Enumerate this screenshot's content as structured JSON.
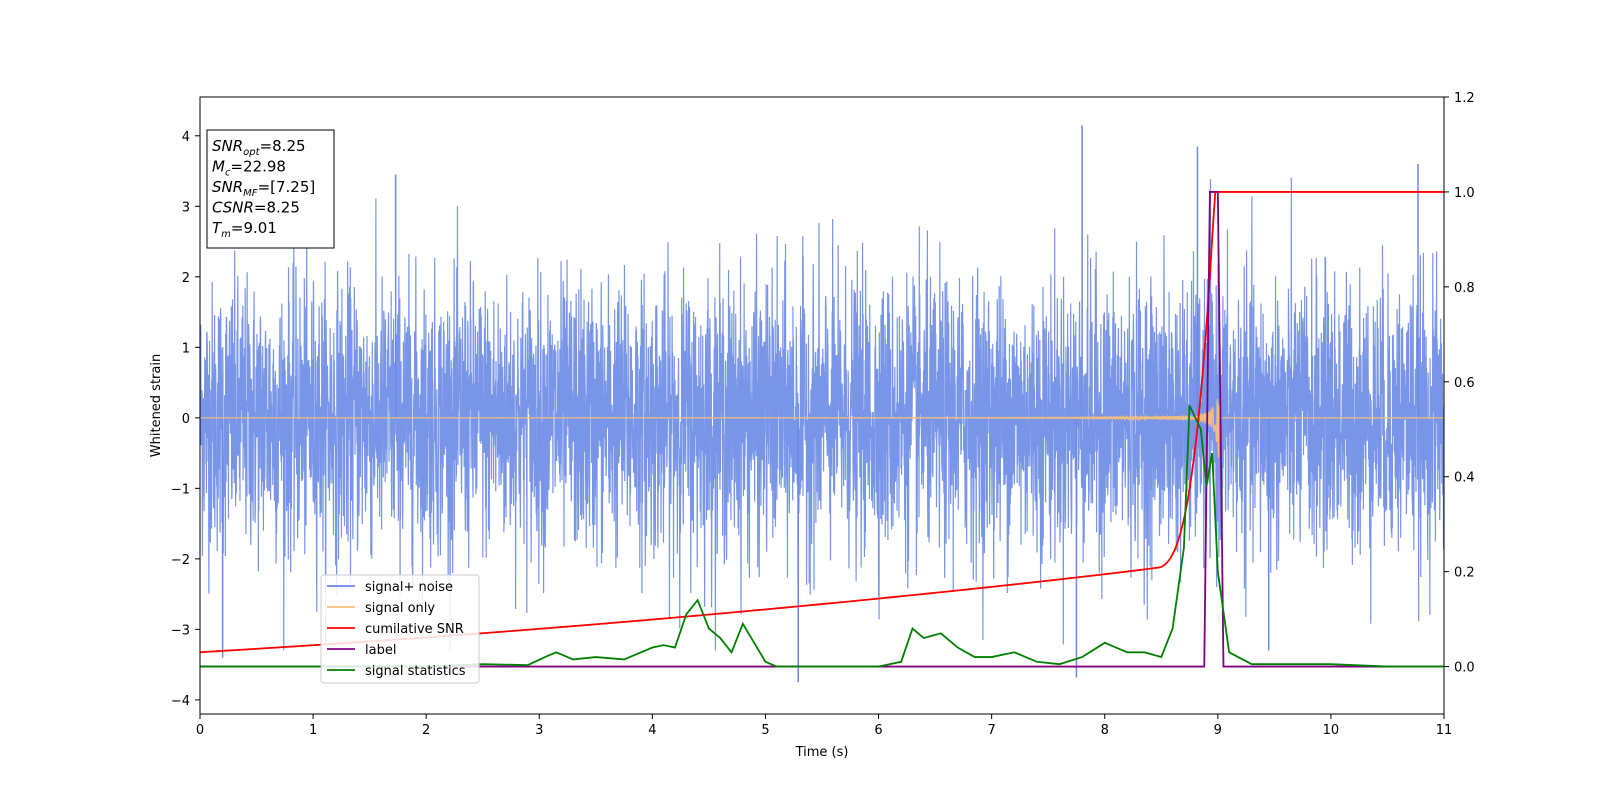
{
  "chart_data": {
    "type": "line",
    "xlabel": "Time (s)",
    "ylabel": "Whitened strain",
    "xlim": [
      0,
      11
    ],
    "ylim_left": [
      -4.2,
      4.55
    ],
    "ylim_right": [
      -0.1,
      1.2
    ],
    "x_ticks": [
      0,
      1,
      2,
      3,
      4,
      5,
      6,
      7,
      8,
      9,
      10,
      11
    ],
    "y_ticks_left": [
      -4,
      -3,
      -2,
      -1,
      0,
      1,
      2,
      3,
      4
    ],
    "y_ticks_right": [
      0.0,
      0.2,
      0.4,
      0.6,
      0.8,
      1.0,
      1.2
    ],
    "grid": false,
    "legend_position": "lower-left",
    "colors": {
      "signal_noise": "#6a8ae6",
      "signal_only": "#f5c07a",
      "cumulative_snr": "#ff0000",
      "label": "#800080",
      "statistics": "#008000"
    },
    "series": [
      {
        "name": "signal+ noise",
        "axis": "left",
        "note_values": "dense noise, approx. amplitude range",
        "typical_range": [
          -2.5,
          2.5
        ],
        "max": 4.15,
        "min": -3.75
      },
      {
        "name": "signal only",
        "axis": "left",
        "chirp_end_time": 9.01,
        "peak_amplitude": 0.6
      },
      {
        "name": "cumilative SNR",
        "axis": "right",
        "x": [
          0,
          1,
          2,
          3,
          4,
          5,
          6,
          7,
          7.5,
          8,
          8.3,
          8.6,
          8.8,
          8.9,
          8.95,
          9.0,
          11
        ],
        "y": [
          0.03,
          0.04,
          0.055,
          0.07,
          0.085,
          0.1,
          0.12,
          0.145,
          0.165,
          0.2,
          0.23,
          0.28,
          0.36,
          0.5,
          0.7,
          1.0,
          1.0
        ]
      },
      {
        "name": "label",
        "axis": "right",
        "x": [
          0,
          8.88,
          8.93,
          9.0,
          9.05,
          11
        ],
        "y": [
          0,
          0,
          1.0,
          1.0,
          0,
          0
        ]
      },
      {
        "name": "signal statistics",
        "axis": "right",
        "x": [
          0,
          1,
          2,
          2.5,
          2.9,
          3.05,
          3.15,
          3.3,
          3.5,
          3.75,
          3.9,
          4.0,
          4.1,
          4.2,
          4.3,
          4.4,
          4.5,
          4.6,
          4.7,
          4.8,
          4.9,
          5.0,
          5.1,
          5.3,
          5.6,
          6.0,
          6.2,
          6.3,
          6.4,
          6.55,
          6.7,
          6.85,
          7.0,
          7.2,
          7.4,
          7.6,
          7.8,
          8.0,
          8.1,
          8.2,
          8.35,
          8.5,
          8.6,
          8.7,
          8.75,
          8.85,
          8.9,
          8.95,
          9.0,
          9.1,
          9.3,
          9.6,
          10.0,
          10.5,
          11
        ],
        "y": [
          0.0,
          0.0,
          0.0,
          0.005,
          0.003,
          0.02,
          0.03,
          0.015,
          0.02,
          0.015,
          0.03,
          0.04,
          0.045,
          0.04,
          0.11,
          0.14,
          0.08,
          0.06,
          0.03,
          0.09,
          0.05,
          0.01,
          0.0,
          0.0,
          0.0,
          0.0,
          0.01,
          0.08,
          0.06,
          0.07,
          0.04,
          0.02,
          0.02,
          0.03,
          0.01,
          0.005,
          0.02,
          0.05,
          0.04,
          0.03,
          0.03,
          0.02,
          0.08,
          0.25,
          0.55,
          0.5,
          0.38,
          0.45,
          0.2,
          0.03,
          0.005,
          0.005,
          0.005,
          0.0,
          0.0
        ]
      }
    ],
    "annotation_box": [
      {
        "main": "SNR",
        "sub": "opt",
        "value": "=8.25"
      },
      {
        "main": "M",
        "sub": "c",
        "value": "=22.98"
      },
      {
        "main": "SNR",
        "sub": "MF",
        "value": "=[7.25]"
      },
      {
        "main": "CSNR",
        "sub": "",
        "value": "=8.25"
      },
      {
        "main": "T",
        "sub": "m",
        "value": "=9.01"
      }
    ]
  }
}
